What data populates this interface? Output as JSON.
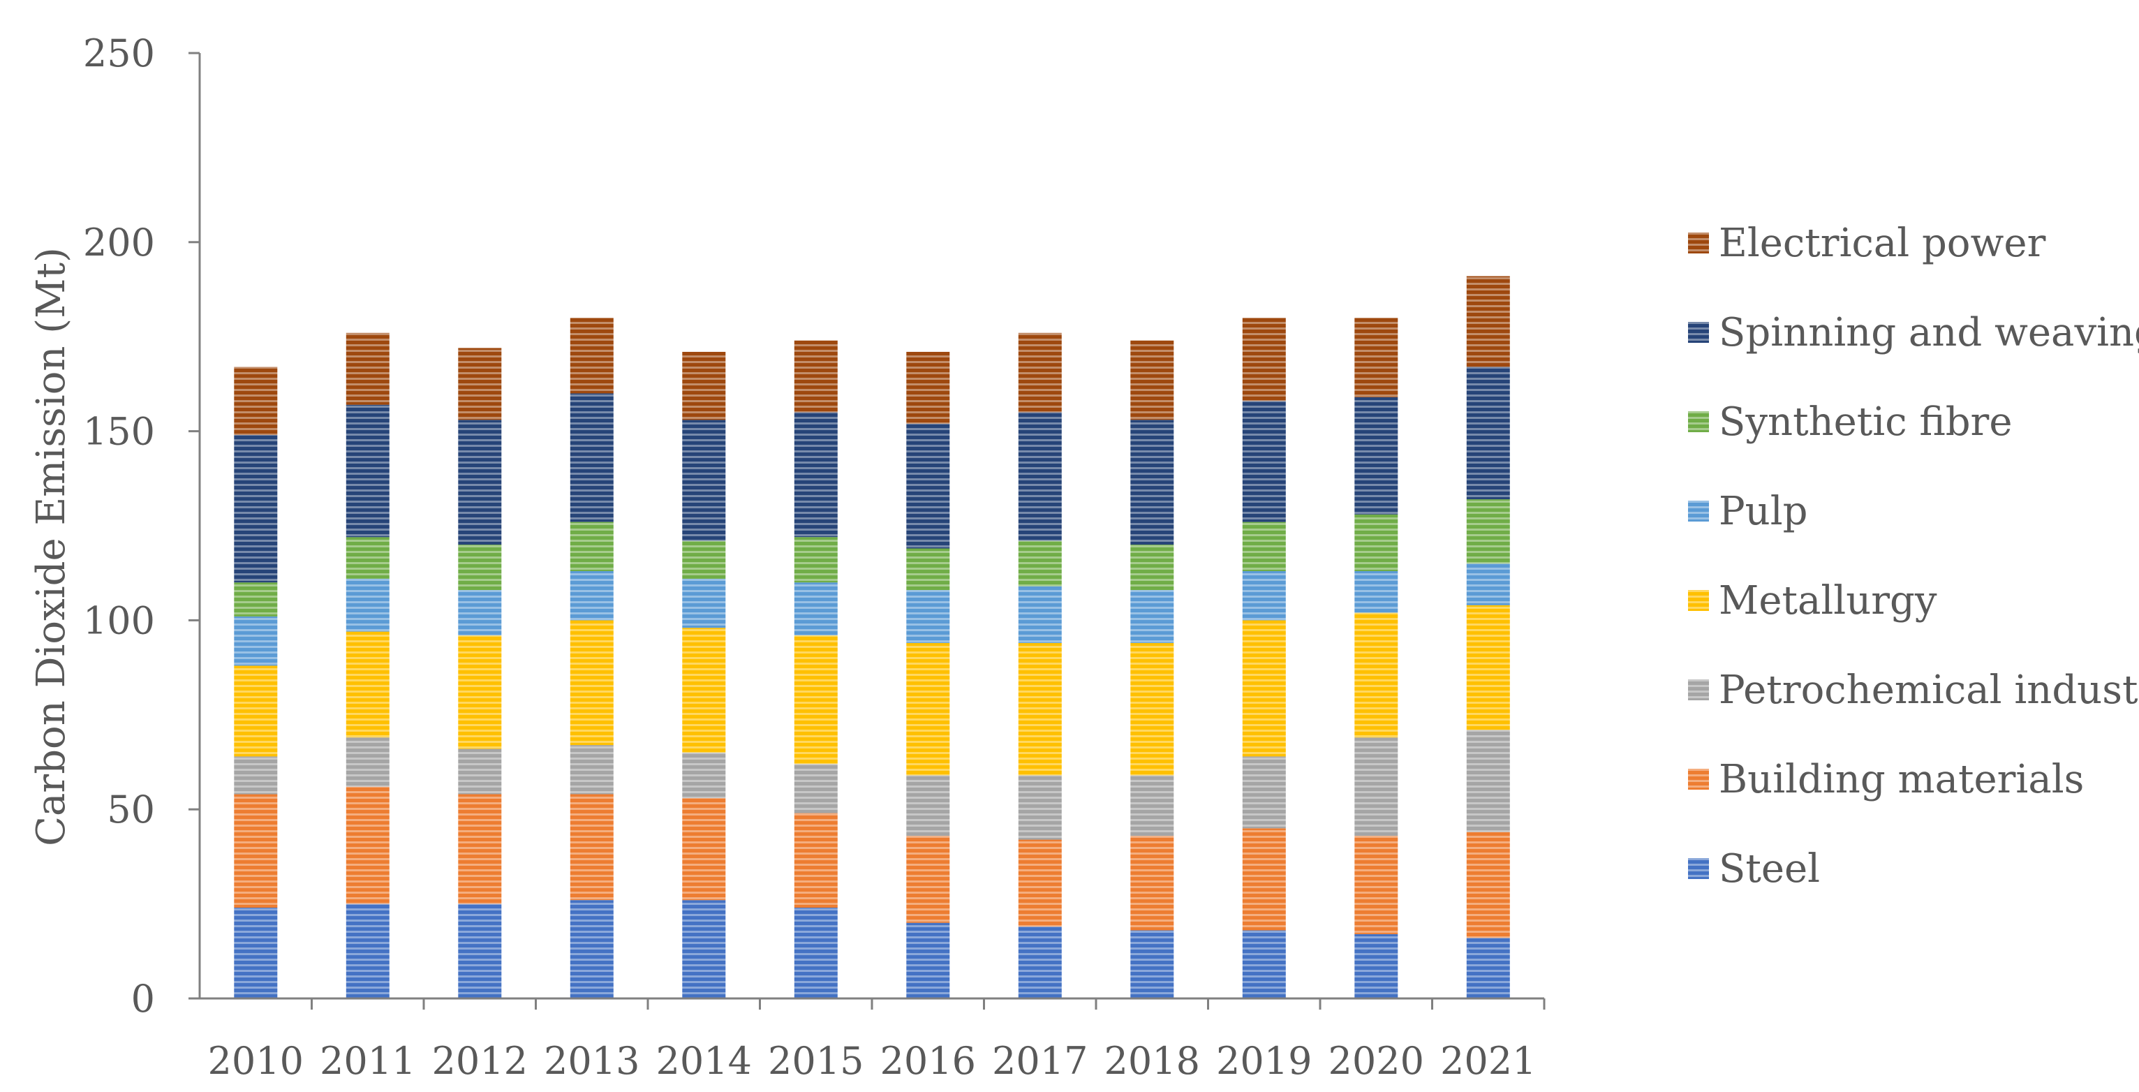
{
  "chart_data": {
    "type": "bar",
    "stacked": true,
    "title": "",
    "xlabel": "",
    "ylabel": "Carbon Dioxide Emission (Mt)",
    "ylim": [
      0,
      250
    ],
    "yticks": [
      0,
      50,
      100,
      150,
      200,
      250
    ],
    "grid": false,
    "legend_position": "right",
    "legend_order": [
      "Electrical power",
      "Spinning and weaving",
      "Synthetic fibre",
      "Pulp",
      "Metallurgy",
      "Petrochemical industry",
      "Building materials",
      "Steel"
    ],
    "categories": [
      "2010",
      "2011",
      "2012",
      "2013",
      "2014",
      "2015",
      "2016",
      "2017",
      "2018",
      "2019",
      "2020",
      "2021"
    ],
    "series": [
      {
        "name": "Steel",
        "color": "#4472c4",
        "values": [
          24,
          25,
          25,
          26,
          26,
          24,
          20,
          19,
          18,
          18,
          17,
          16
        ]
      },
      {
        "name": "Building materials",
        "color": "#ed7d31",
        "values": [
          30,
          31,
          29,
          28,
          27,
          25,
          23,
          23,
          25,
          27,
          26,
          28
        ]
      },
      {
        "name": "Petrochemical industry",
        "color": "#a5a5a5",
        "values": [
          10,
          13,
          12,
          13,
          12,
          13,
          16,
          17,
          16,
          19,
          26,
          27
        ]
      },
      {
        "name": "Metallurgy",
        "color": "#ffc000",
        "values": [
          24,
          28,
          30,
          33,
          33,
          34,
          35,
          35,
          35,
          36,
          33,
          33
        ]
      },
      {
        "name": "Pulp",
        "color": "#5b9bd5",
        "values": [
          13,
          14,
          12,
          13,
          13,
          14,
          14,
          15,
          14,
          13,
          11,
          11
        ]
      },
      {
        "name": "Synthetic fibre",
        "color": "#70ad47",
        "values": [
          9,
          11,
          12,
          13,
          10,
          12,
          11,
          12,
          12,
          13,
          15,
          17
        ]
      },
      {
        "name": "Spinning and weaving",
        "color": "#264478",
        "values": [
          39,
          35,
          33,
          34,
          32,
          33,
          33,
          34,
          33,
          32,
          31,
          35
        ]
      },
      {
        "name": "Electrical power",
        "color": "#9e480e",
        "values": [
          18,
          19,
          19,
          20,
          18,
          19,
          19,
          21,
          21,
          22,
          21,
          24
        ]
      }
    ]
  }
}
